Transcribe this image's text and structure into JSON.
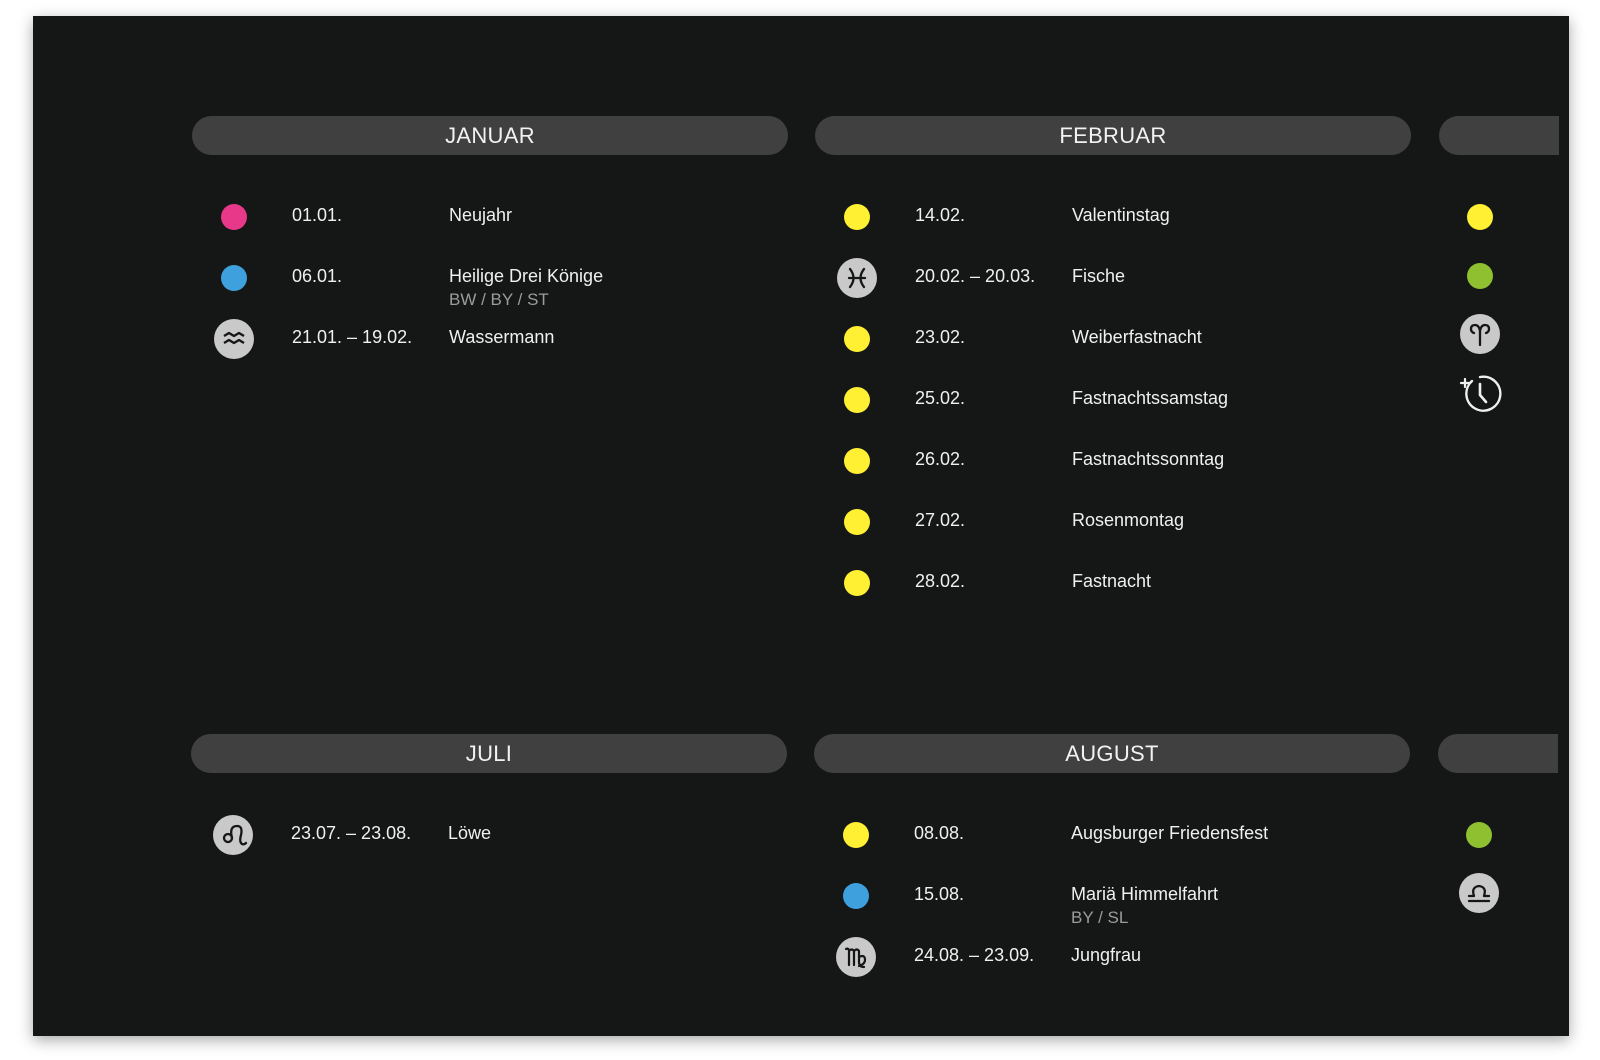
{
  "colors": {
    "background": "#151616",
    "header_bar": "#404040",
    "pink": "#e8388a",
    "blue": "#3fa0de",
    "yellow": "#fff033",
    "green": "#8fc030",
    "zodiac_disc": "#c9c9c9"
  },
  "months": [
    {
      "title": "JANUAR",
      "events": [
        {
          "marker": "pink",
          "date": "01.01.",
          "name": "Neujahr",
          "sub": ""
        },
        {
          "marker": "blue",
          "date": "06.01.",
          "name": "Heilige Drei Könige",
          "sub": "BW / BY / ST"
        },
        {
          "marker": "aquarius-icon",
          "date": "21.01. – 19.02.",
          "name": "Wassermann",
          "sub": ""
        }
      ]
    },
    {
      "title": "FEBRUAR",
      "events": [
        {
          "marker": "yellow",
          "date": "14.02.",
          "name": "Valentinstag",
          "sub": ""
        },
        {
          "marker": "pisces-icon",
          "date": "20.02. – 20.03.",
          "name": "Fische",
          "sub": ""
        },
        {
          "marker": "yellow",
          "date": "23.02.",
          "name": "Weiberfastnacht",
          "sub": ""
        },
        {
          "marker": "yellow",
          "date": "25.02.",
          "name": "Fastnachtssamstag",
          "sub": ""
        },
        {
          "marker": "yellow",
          "date": "26.02.",
          "name": "Fastnachtssonntag",
          "sub": ""
        },
        {
          "marker": "yellow",
          "date": "27.02.",
          "name": "Rosenmontag",
          "sub": ""
        },
        {
          "marker": "yellow",
          "date": "28.02.",
          "name": "Fastnacht",
          "sub": ""
        }
      ]
    },
    {
      "title": "JULI",
      "events": [
        {
          "marker": "leo-icon",
          "date": "23.07. – 23.08.",
          "name": "Löwe",
          "sub": ""
        }
      ]
    },
    {
      "title": "AUGUST",
      "events": [
        {
          "marker": "yellow",
          "date": "08.08.",
          "name": "Augsburger Friedensfest",
          "sub": ""
        },
        {
          "marker": "blue",
          "date": "15.08.",
          "name": "Mariä Himmelfahrt",
          "sub": "BY / SL"
        },
        {
          "marker": "virgo-icon",
          "date": "24.08. – 23.09.",
          "name": "Jungfrau",
          "sub": ""
        }
      ]
    }
  ],
  "cut_off_columns": {
    "top": [
      "yellow",
      "green",
      "aries-icon",
      "daylight-saving-clock-icon"
    ],
    "bottom": [
      "green",
      "libra-icon"
    ]
  }
}
